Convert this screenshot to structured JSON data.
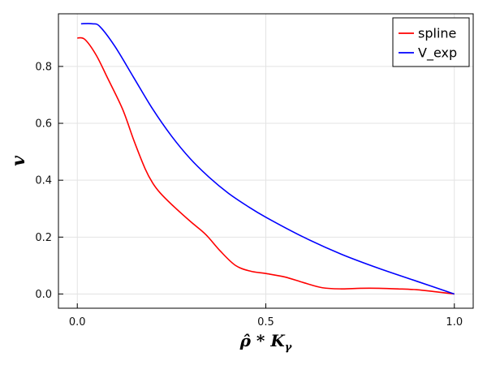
{
  "chart_data": {
    "type": "line",
    "xlabel": "ρ̂ * K",
    "xlabel_sub": "γ",
    "ylabel": "v",
    "xlim": [
      -0.05,
      1.05
    ],
    "ylim": [
      -0.05,
      0.985
    ],
    "xticks": [
      0.0,
      0.5,
      1.0
    ],
    "xtick_labels": [
      "0.0",
      "0.5",
      "1.0"
    ],
    "yticks": [
      0.0,
      0.2,
      0.4,
      0.6,
      0.8
    ],
    "ytick_labels": [
      "0.0",
      "0.2",
      "0.4",
      "0.6",
      "0.8"
    ],
    "grid": true,
    "legend_position": "top-right",
    "series": [
      {
        "name": "spline",
        "color": "#ff0000",
        "x": [
          0.0,
          0.02,
          0.05,
          0.08,
          0.12,
          0.15,
          0.18,
          0.2,
          0.22,
          0.25,
          0.3,
          0.34,
          0.38,
          0.42,
          0.46,
          0.5,
          0.55,
          0.6,
          0.65,
          0.7,
          0.75,
          0.8,
          0.85,
          0.9,
          0.95,
          1.0
        ],
        "y": [
          0.9,
          0.895,
          0.84,
          0.76,
          0.65,
          0.54,
          0.44,
          0.39,
          0.355,
          0.315,
          0.255,
          0.21,
          0.15,
          0.1,
          0.08,
          0.072,
          0.06,
          0.04,
          0.022,
          0.018,
          0.02,
          0.02,
          0.018,
          0.015,
          0.008,
          0.0
        ]
      },
      {
        "name": "V_exp",
        "color": "#0000ff",
        "x": [
          0.01,
          0.04,
          0.06,
          0.1,
          0.15,
          0.2,
          0.25,
          0.3,
          0.35,
          0.4,
          0.45,
          0.5,
          0.6,
          0.7,
          0.8,
          0.9,
          1.0
        ],
        "y": [
          0.95,
          0.95,
          0.94,
          0.87,
          0.76,
          0.65,
          0.555,
          0.475,
          0.41,
          0.355,
          0.31,
          0.27,
          0.2,
          0.14,
          0.09,
          0.045,
          0.0
        ]
      }
    ]
  }
}
